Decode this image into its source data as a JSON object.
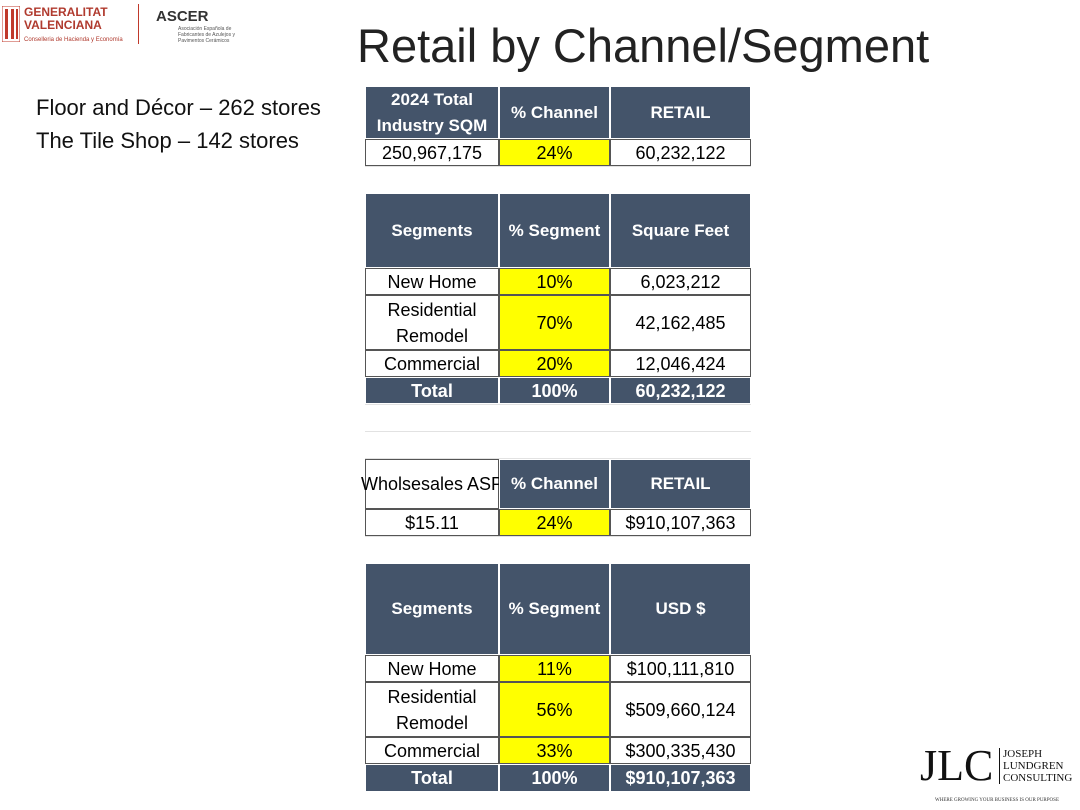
{
  "header": {
    "title": "Retail by Channel/Segment",
    "logo_left": {
      "name": "GENERALITAT VALENCIANA",
      "subtitle": "Conselleria de Hacienda y Economía"
    },
    "logo_middle": {
      "name": "ASCER",
      "subtitle": "Asociación Española de Fabricantes de Azulejos y Pavimentos Cerámicos"
    }
  },
  "notes": [
    "Floor and Décor – 262 stores",
    "The Tile Shop – 142 stores"
  ],
  "tables": [
    {
      "header": [
        "2024 Total Industry SQM",
        "% Channel",
        "RETAIL"
      ],
      "rows": [
        [
          "250,967,175",
          "24%",
          "60,232,122"
        ]
      ]
    },
    {
      "header": [
        "Segments",
        "% Segment",
        "Square Feet"
      ],
      "rows": [
        [
          "New Home",
          "10%",
          "6,023,212"
        ],
        [
          "Residential Remodel",
          "70%",
          "42,162,485"
        ],
        [
          "Commercial",
          "20%",
          "12,046,424"
        ]
      ],
      "total": [
        "Total",
        "100%",
        "60,232,122"
      ]
    },
    {
      "header": [
        "Wholsesales ASP",
        "% Channel",
        "RETAIL"
      ],
      "rows": [
        [
          "$15.11",
          "24%",
          "$910,107,363"
        ]
      ]
    },
    {
      "header": [
        "Segments",
        "% Segment",
        "USD $"
      ],
      "rows": [
        [
          "New Home",
          "11%",
          "$100,111,810"
        ],
        [
          "Residential Remodel",
          "56%",
          "$509,660,124"
        ],
        [
          "Commercial",
          "33%",
          "$300,335,430"
        ]
      ],
      "total": [
        "Total",
        "100%",
        "$910,107,363"
      ]
    }
  ],
  "footer": {
    "logo": "JLC",
    "company": "JOSEPH LUNDGREN CONSULTING",
    "tagline": "WHERE GROWING YOUR BUSINESS IS OUR PURPOSE"
  }
}
